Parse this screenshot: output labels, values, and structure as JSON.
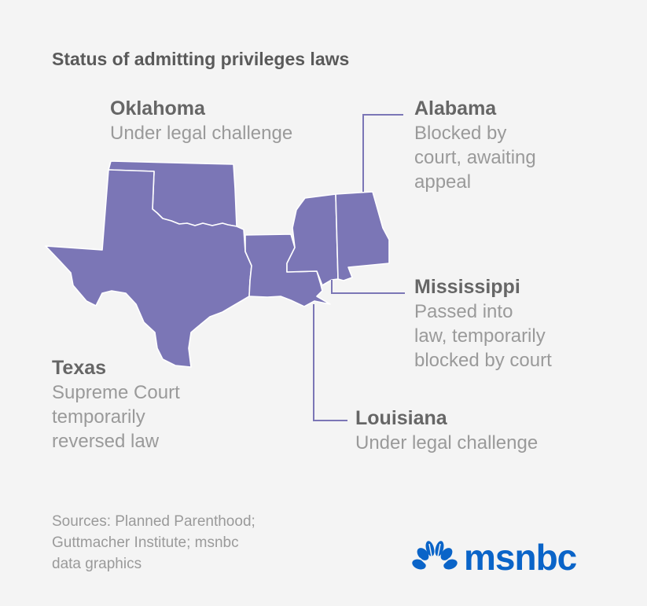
{
  "title": "Status of admitting privileges laws",
  "fill_color": "#7b76b6",
  "states": {
    "oklahoma": {
      "name": "Oklahoma",
      "status": [
        "Under legal challenge"
      ]
    },
    "alabama": {
      "name": "Alabama",
      "status": [
        "Blocked by",
        "court, awaiting",
        "appeal"
      ]
    },
    "mississippi": {
      "name": "Mississippi",
      "status": [
        "Passed into",
        "law, temporarily",
        "blocked by court"
      ]
    },
    "texas": {
      "name": "Texas",
      "status": [
        "Supreme Court",
        "temporarily",
        "reversed law"
      ]
    },
    "louisiana": {
      "name": "Louisiana",
      "status": [
        "Under legal challenge"
      ]
    }
  },
  "sources": [
    "Sources: Planned Parenthood;",
    "Guttmacher Institute; msnbc",
    "data graphics"
  ],
  "logo": {
    "text": "msnbc",
    "color": "#0a64c8",
    "icon": "peacock-icon"
  }
}
